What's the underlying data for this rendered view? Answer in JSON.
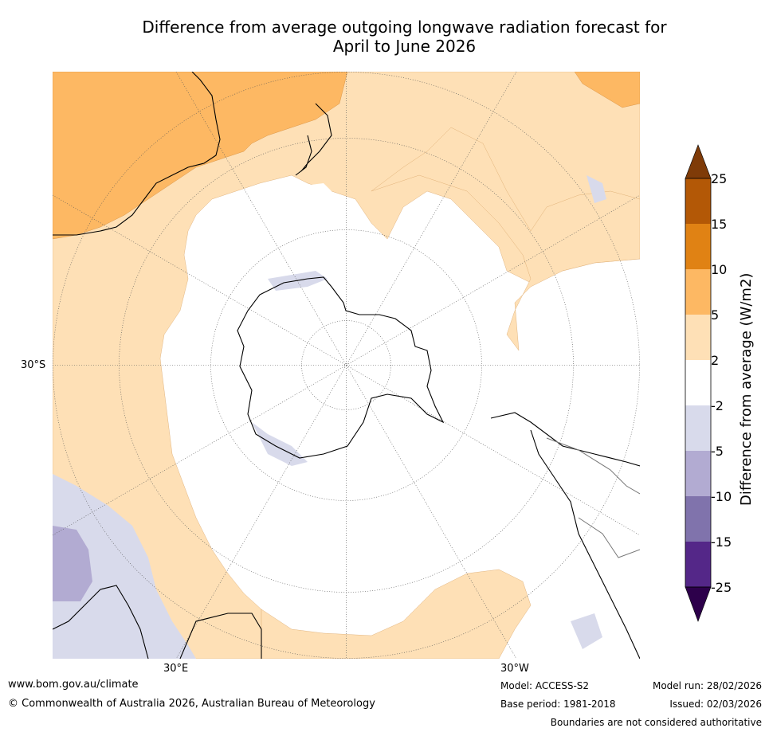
{
  "title": {
    "line1": "Difference from average outgoing longwave radiation forecast for",
    "line2": "April to June 2026"
  },
  "map": {
    "lat_label": "30°S",
    "lon_label_left": "30°E",
    "lon_label_right": "30°W"
  },
  "legend": {
    "title": "Difference from average (W/m2)",
    "ticks": [
      "25",
      "15",
      "10",
      "5",
      "2",
      "-2",
      "-5",
      "-10",
      "-15",
      "-25"
    ],
    "colors": {
      "above_25": "#7f3b08",
      "15_25": "#b35806",
      "10_15": "#e08214",
      "5_10": "#fdb863",
      "2_5": "#fee0b6",
      "neutral": "#ffffff",
      "m5_m2": "#d8daeb",
      "m10_m5": "#b2abd2",
      "m15_m10": "#8073ac",
      "m25_m15": "#542788",
      "below_m25": "#2d004b"
    }
  },
  "footer": {
    "website": "www.bom.gov.au/climate",
    "copyright": "© Commonwealth of Australia 2026, Australian Bureau of Meteorology",
    "model": "Model: ACCESS-S2",
    "base_period": "Base period: 1981-2018",
    "model_run": "Model run: 28/02/2026",
    "issued": "Issued: 02/03/2026",
    "disclaimer": "Boundaries are not considered authoritative"
  }
}
